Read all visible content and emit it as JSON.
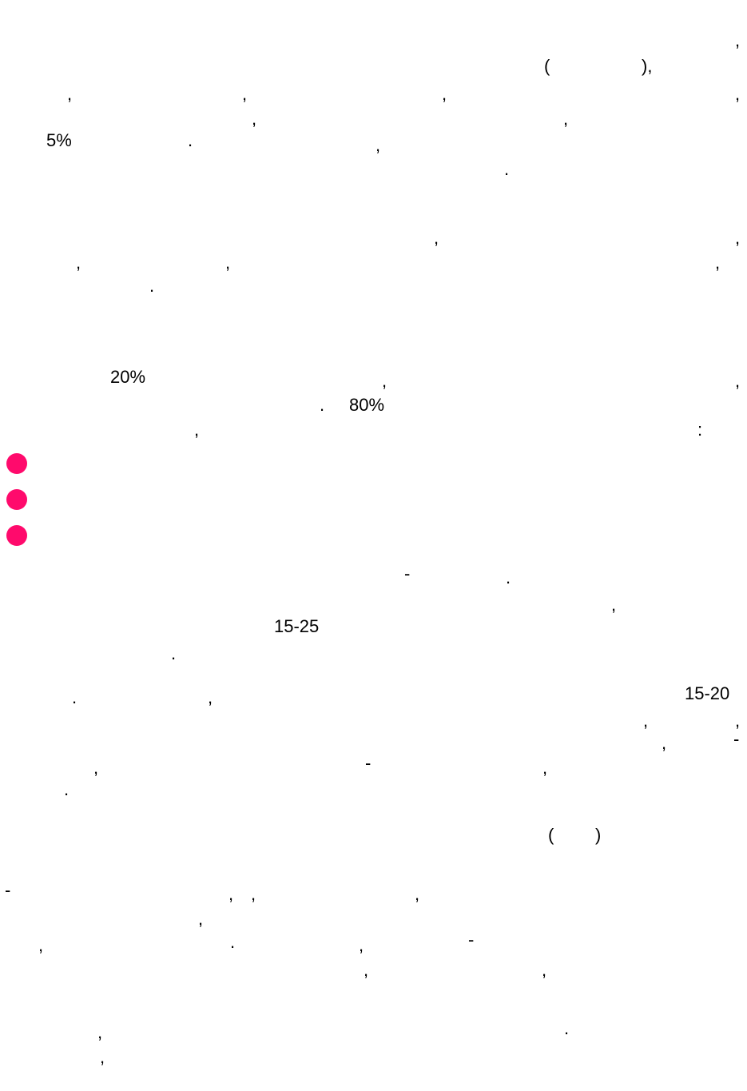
{
  "colors": {
    "bullet": "#ff0a6c",
    "text": "#000000",
    "background": "#ffffff"
  },
  "fragments": [
    ",",
    "(",
    "),",
    ",",
    ",",
    ",",
    ",",
    ",",
    ",",
    ",",
    ",",
    "5%",
    ".",
    ",",
    ".",
    ",",
    ",",
    ",",
    ",",
    ",",
    ",",
    ".",
    "20%",
    ",",
    ",",
    ".",
    "80%",
    ",",
    ":",
    "-",
    ".",
    ",",
    "15-25",
    ".",
    ".",
    ",",
    "15-20",
    ",",
    ",",
    ",",
    "-",
    ",",
    "-",
    ",",
    ".",
    "(",
    ")",
    "-",
    ",",
    ",",
    ",",
    ",",
    ",",
    ".",
    ",",
    "-",
    ",",
    ",",
    ",",
    ".",
    ","
  ]
}
